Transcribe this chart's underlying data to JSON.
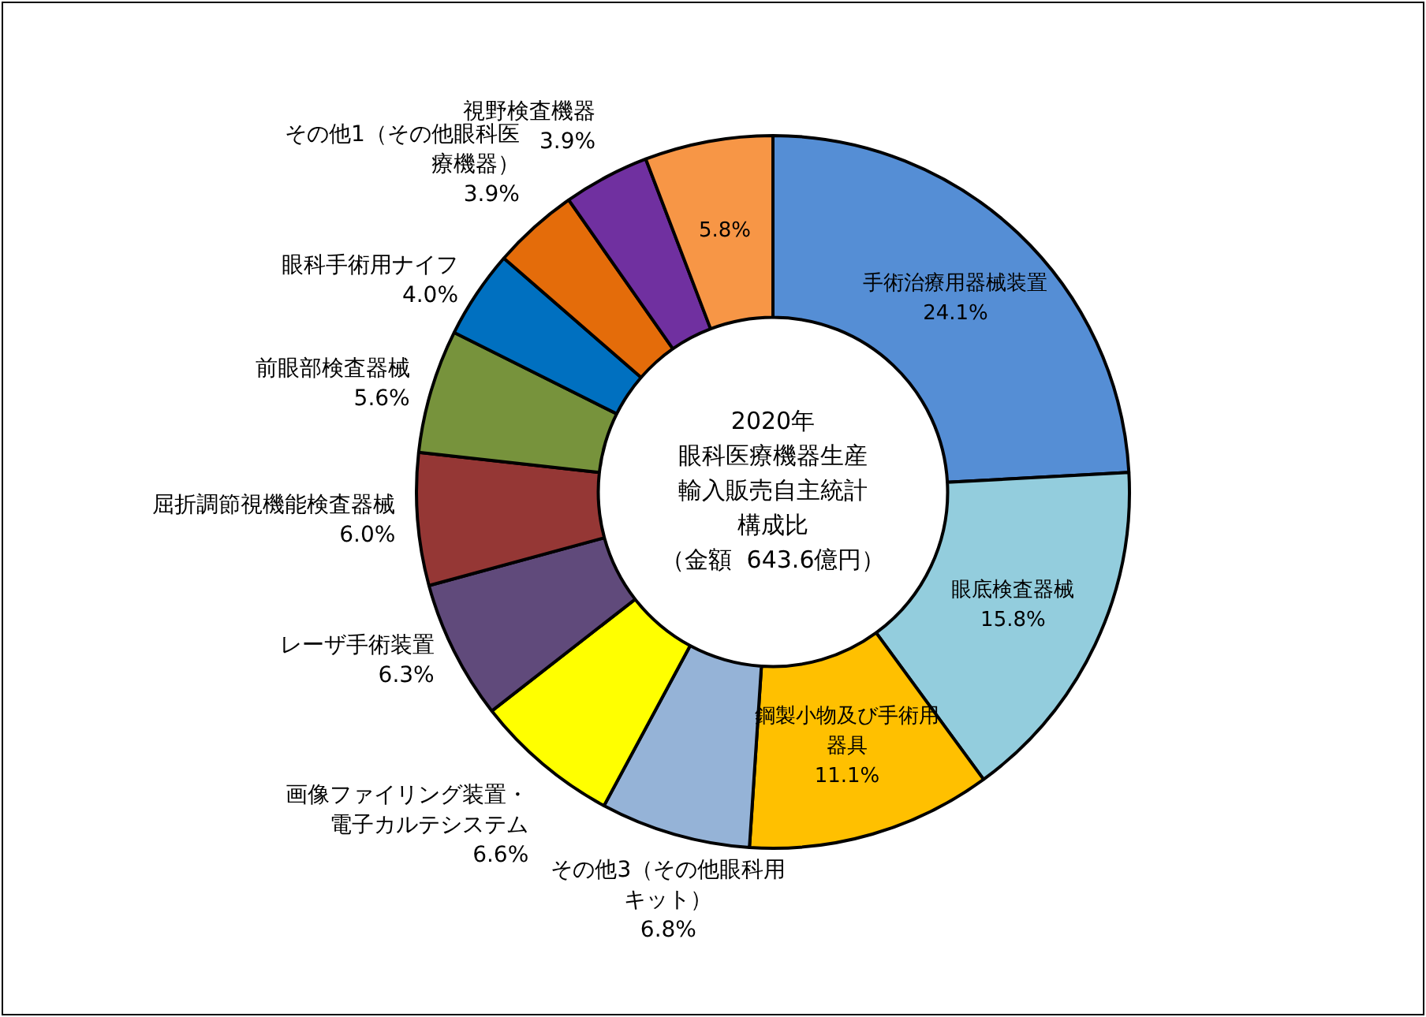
{
  "chart_data": {
    "type": "donut",
    "title": "2020年",
    "subtitle": "眼科医療機器生産輸入販売自主統計構成比",
    "annotations": [
      "（金額  643.6億円）"
    ],
    "categories": [
      "手術治療用器械装置",
      "眼底検査器械",
      "鋼製小物及び手術用器具",
      "その他3（その他眼科用キット）",
      "画像ファイリング装置・電子カルテシステム",
      "レーザ手術装置",
      "屈折調節視機能検査器械",
      "前眼部検査器械",
      "眼科手術用ナイフ",
      "その他1（その他眼科医療機器）",
      "視野検査機器",
      null
    ],
    "values": [
      24.1,
      15.8,
      11.1,
      6.8,
      6.6,
      6.3,
      6.0,
      5.6,
      4.0,
      3.9,
      3.9,
      5.8
    ],
    "value_labels": [
      "24.1%",
      "15.8%",
      "11.1%",
      "6.8%",
      "6.6%",
      "6.3%",
      "6.0%",
      "5.6%",
      "4.0%",
      "3.9%",
      "3.9%",
      "5.8%"
    ],
    "colors": [
      "#558ed5",
      "#93cddd",
      "#ffc000",
      "#95b3d7",
      "#ffff00",
      "#604a7b",
      "#953735",
      "#77933c",
      "#0070c0",
      "#e46c0a",
      "#7030a0",
      "#f79646"
    ],
    "legend": false
  }
}
